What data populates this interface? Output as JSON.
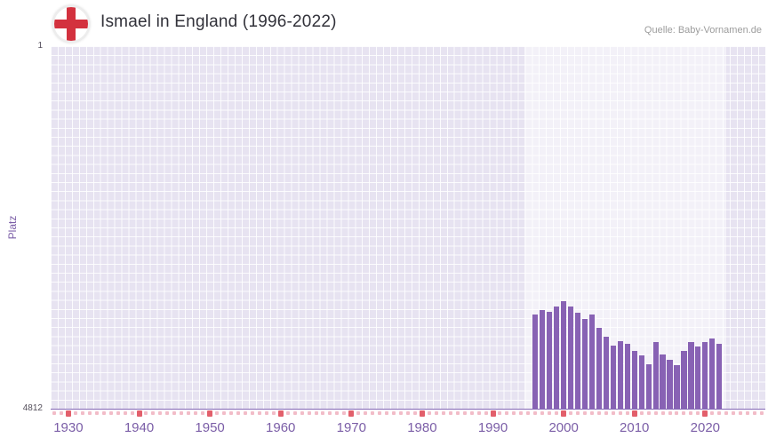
{
  "header": {
    "title": "Ismael in England (1996-2022)",
    "source": "Quelle: Baby-Vornamen.de",
    "flag_icon": "england-st-george-cross-flag"
  },
  "colors": {
    "bar": "#8862b4",
    "plot_background": "#e7e3f1",
    "plot_band": "#f3f1f9",
    "axis_label": "#7b5ea7",
    "flag_cross_red": "#d3313e",
    "tick_minor_pink": "#f2bcc8",
    "tick_major_red": "#e25f6b",
    "title_text": "#32323a",
    "source_text": "#9c9c9c"
  },
  "chart_data": {
    "type": "bar",
    "title": "Ismael in England (1996-2022)",
    "xlabel": "",
    "ylabel": "Platz",
    "legend": "none",
    "grid": true,
    "y_axis": {
      "top_label": "1",
      "bottom_label": "4812",
      "min": 1,
      "max": 4812,
      "inverted": true,
      "note": "rank axis: 1 = best at top, 4812 at bottom; taller bar = better rank"
    },
    "x_axis": {
      "range": [
        1927.5,
        2028.5
      ],
      "tick_labels": [
        "1930",
        "1940",
        "1950",
        "1960",
        "1970",
        "1980",
        "1990",
        "2000",
        "2010",
        "2020"
      ],
      "minor_tick_every_years": 1,
      "major_tick_every_years": 10
    },
    "plot_band": {
      "from": 1994.5,
      "to": 2023.0
    },
    "categories": [
      1996,
      1997,
      1998,
      1999,
      2000,
      2001,
      2002,
      2003,
      2004,
      2005,
      2006,
      2007,
      2008,
      2009,
      2010,
      2011,
      2012,
      2013,
      2014,
      2015,
      2016,
      2017,
      2018,
      2019,
      2020,
      2021,
      2022
    ],
    "values": [
      3560,
      3500,
      3530,
      3450,
      3390,
      3460,
      3540,
      3620,
      3560,
      3740,
      3860,
      3980,
      3920,
      3950,
      4040,
      4100,
      4220,
      3930,
      4090,
      4160,
      4230,
      4040,
      3930,
      3990,
      3930,
      3880,
      3950
    ]
  }
}
